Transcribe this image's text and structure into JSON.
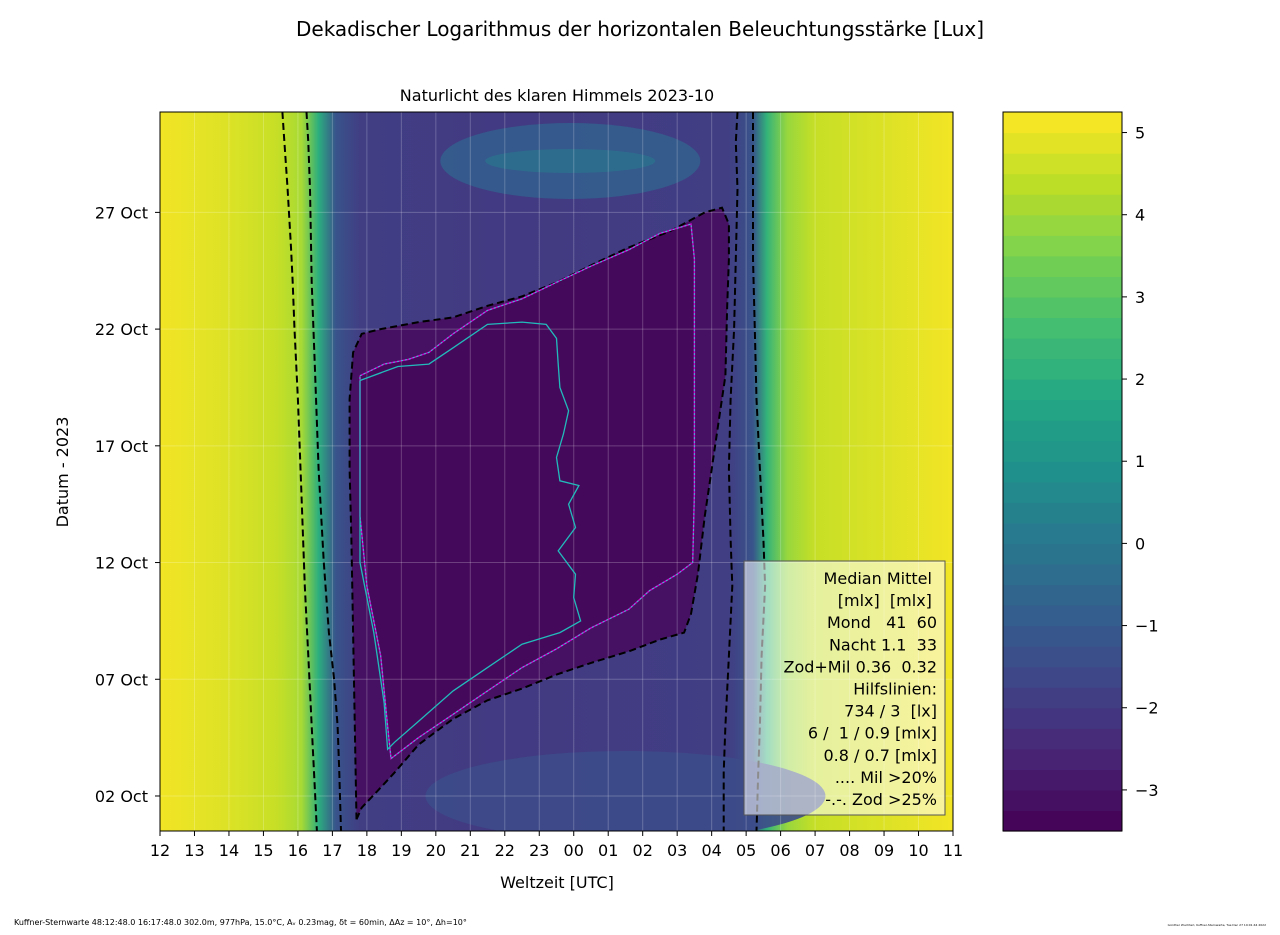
{
  "figure": {
    "title": "Dekadischer Logarithmus der horizontalen Beleuchtungsstärke [Lux]",
    "footer_left": "Kuffner-Sternwarte 48:12:48.0 16:17:48.0 302.0m,  977hPa, 15.0°C, Aᵥ 0.23mag, δt = 60min, ΔAz = 10°, Δh=10°",
    "footer_right": "Günther Wuchterl, Kuffner-Sternwarte, Tue Dec 27 19:01:44 2022"
  },
  "chart_data": {
    "type": "heatmap",
    "title": "Naturlicht des klaren Himmels 2023-10",
    "xlabel": "Weltzeit [UTC]",
    "ylabel": "Datum - 2023",
    "x_ticks": [
      "12",
      "13",
      "14",
      "15",
      "16",
      "17",
      "18",
      "19",
      "20",
      "21",
      "22",
      "23",
      "00",
      "01",
      "02",
      "03",
      "04",
      "05",
      "06",
      "07",
      "08",
      "09",
      "10",
      "11"
    ],
    "y_ticks": [
      "02 Oct",
      "07 Oct",
      "12 Oct",
      "17 Oct",
      "22 Oct",
      "27 Oct"
    ],
    "y_tick_days": [
      2,
      7,
      12,
      17,
      22,
      27
    ],
    "y_range_days": [
      0.5,
      31.3
    ],
    "x_range_hours": [
      12,
      35
    ],
    "grid": true,
    "colormap": "viridis",
    "colorbar": {
      "min": -3.5,
      "max": 5.25,
      "ticks": [
        5,
        4,
        3,
        2,
        1,
        0,
        -1,
        -2,
        -3
      ],
      "tick_labels": [
        "5",
        "4",
        "3",
        "2",
        "1",
        "0",
        "−1",
        "−2",
        "−3"
      ]
    },
    "levels": {
      "daylight": 4.5,
      "civil_dusk": 2.5,
      "night_floor": -3.3,
      "moon_max": -0.4
    },
    "contours": {
      "dashed_black_outer_evening": [
        [
          15.55,
          31.3
        ],
        [
          15.6,
          30.2
        ],
        [
          15.7,
          28
        ],
        [
          15.8,
          25.5
        ],
        [
          15.85,
          24
        ],
        [
          15.9,
          22
        ],
        [
          16.0,
          19
        ],
        [
          16.1,
          15
        ],
        [
          16.2,
          11
        ],
        [
          16.3,
          8
        ],
        [
          16.4,
          5
        ],
        [
          16.5,
          2
        ],
        [
          16.55,
          0.5
        ]
      ],
      "dashed_black_inner_evening": [
        [
          16.25,
          31.3
        ],
        [
          16.3,
          30
        ],
        [
          16.35,
          28
        ],
        [
          16.4,
          24
        ],
        [
          16.5,
          20
        ],
        [
          16.6,
          16
        ],
        [
          16.75,
          12
        ],
        [
          16.9,
          9
        ],
        [
          17.05,
          7
        ],
        [
          17.15,
          5
        ],
        [
          17.2,
          3
        ],
        [
          17.25,
          0.5
        ]
      ],
      "dashed_black_inner_morning": [
        [
          4.75,
          31.3
        ],
        [
          4.7,
          30
        ],
        [
          4.75,
          28
        ],
        [
          4.7,
          25
        ],
        [
          4.65,
          22
        ],
        [
          4.55,
          19
        ],
        [
          4.5,
          16
        ],
        [
          4.55,
          13
        ],
        [
          4.6,
          11
        ],
        [
          4.5,
          8
        ],
        [
          4.4,
          5
        ],
        [
          4.35,
          3
        ],
        [
          4.35,
          0.5
        ]
      ],
      "dashed_black_outer_morning": [
        [
          5.2,
          31.3
        ],
        [
          5.2,
          30
        ],
        [
          5.2,
          28
        ],
        [
          5.2,
          25
        ],
        [
          5.25,
          22
        ],
        [
          5.3,
          19
        ],
        [
          5.4,
          16
        ],
        [
          5.5,
          13
        ],
        [
          5.55,
          11
        ],
        [
          5.45,
          8
        ],
        [
          5.4,
          5
        ],
        [
          5.35,
          3
        ],
        [
          5.3,
          0.5
        ]
      ],
      "dashed_black_night_moonless": [
        [
          17.7,
          1
        ],
        [
          17.85,
          1.5
        ],
        [
          18.3,
          2.2
        ],
        [
          18.8,
          3
        ],
        [
          19.5,
          4.2
        ],
        [
          20.5,
          5.3
        ],
        [
          21.5,
          6.1
        ],
        [
          22.5,
          6.6
        ],
        [
          23.5,
          7.2
        ],
        [
          24.5,
          7.7
        ],
        [
          25.6,
          8.2
        ],
        [
          26.5,
          8.7
        ],
        [
          27.2,
          9
        ],
        [
          27.4,
          9.8
        ],
        [
          27.6,
          11.5
        ],
        [
          27.8,
          14
        ],
        [
          28.0,
          16
        ],
        [
          28.2,
          18
        ],
        [
          28.4,
          20
        ],
        [
          28.45,
          23
        ],
        [
          28.5,
          25
        ],
        [
          28.5,
          26.5
        ],
        [
          28.3,
          27.2
        ],
        [
          27.8,
          27
        ],
        [
          26.8,
          26.2
        ],
        [
          25.6,
          25.5
        ],
        [
          24.6,
          24.8
        ],
        [
          23.5,
          24
        ],
        [
          22.5,
          23.4
        ],
        [
          21.5,
          23
        ],
        [
          20.5,
          22.5
        ],
        [
          19.5,
          22.3
        ],
        [
          18.4,
          22
        ],
        [
          17.85,
          21.8
        ],
        [
          17.6,
          21
        ],
        [
          17.5,
          19
        ],
        [
          17.5,
          16
        ],
        [
          17.55,
          13
        ],
        [
          17.6,
          9
        ],
        [
          17.65,
          5
        ],
        [
          17.7,
          1
        ]
      ],
      "magenta_milky_way": [
        [
          17.8,
          20
        ],
        [
          18.5,
          20.5
        ],
        [
          19.2,
          20.7
        ],
        [
          19.8,
          21
        ],
        [
          20.5,
          21.8
        ],
        [
          21.5,
          22.8
        ],
        [
          22.5,
          23.3
        ],
        [
          23.5,
          24
        ],
        [
          24.5,
          24.7
        ],
        [
          25.6,
          25.4
        ],
        [
          26.5,
          26.1
        ],
        [
          27.4,
          26.5
        ],
        [
          27.5,
          25
        ],
        [
          27.5,
          20
        ],
        [
          27.5,
          15
        ],
        [
          27.45,
          12
        ],
        [
          27.0,
          11.5
        ],
        [
          26.2,
          10.8
        ],
        [
          25.6,
          10
        ],
        [
          24.5,
          9.2
        ],
        [
          23.5,
          8.3
        ],
        [
          22.5,
          7.5
        ],
        [
          21.5,
          6.5
        ],
        [
          20.5,
          5.5
        ],
        [
          19.5,
          4.5
        ],
        [
          18.7,
          3.6
        ],
        [
          18.6,
          5
        ],
        [
          18.4,
          8
        ],
        [
          18.0,
          11
        ],
        [
          17.8,
          14
        ],
        [
          17.8,
          17
        ],
        [
          17.8,
          20
        ]
      ],
      "cyan_zodiacal": [
        [
          17.8,
          19.8
        ],
        [
          18.9,
          20.4
        ],
        [
          19.8,
          20.5
        ],
        [
          20.5,
          21.2
        ],
        [
          21.5,
          22.2
        ],
        [
          22.5,
          22.3
        ],
        [
          23.2,
          22.2
        ],
        [
          23.5,
          21.6
        ],
        [
          23.55,
          20.5
        ],
        [
          23.6,
          19.5
        ],
        [
          23.85,
          18.5
        ],
        [
          23.7,
          17.5
        ],
        [
          23.5,
          16.5
        ],
        [
          23.6,
          15.5
        ],
        [
          24.15,
          15.3
        ],
        [
          23.85,
          14.5
        ],
        [
          24.05,
          13.5
        ],
        [
          23.55,
          12.5
        ],
        [
          24.05,
          11.5
        ],
        [
          24.0,
          10.5
        ],
        [
          24.2,
          9.5
        ],
        [
          23.6,
          9
        ],
        [
          22.5,
          8.5
        ],
        [
          21.5,
          7.5
        ],
        [
          20.5,
          6.5
        ],
        [
          19.5,
          5.2
        ],
        [
          18.8,
          4.3
        ],
        [
          18.6,
          4
        ],
        [
          18.5,
          6
        ],
        [
          18.2,
          9
        ],
        [
          17.8,
          12
        ],
        [
          17.8,
          15
        ],
        [
          17.8,
          19.8
        ]
      ]
    },
    "legend_box": {
      "lines": [
        "Median Mittel ",
        "[mlx]  [mlx] ",
        "Mond   41  60",
        "Nacht 1.1  33",
        "Zod+Mil 0.36  0.32",
        "Hilfslinien:",
        "734 / 3  [lx]",
        "6 /  1 / 0.9 [mlx]",
        "0.8 / 0.7 [mlx]",
        ".... Mil >20%",
        "-.-. Zod >25%"
      ],
      "placement": "lower-right"
    }
  }
}
